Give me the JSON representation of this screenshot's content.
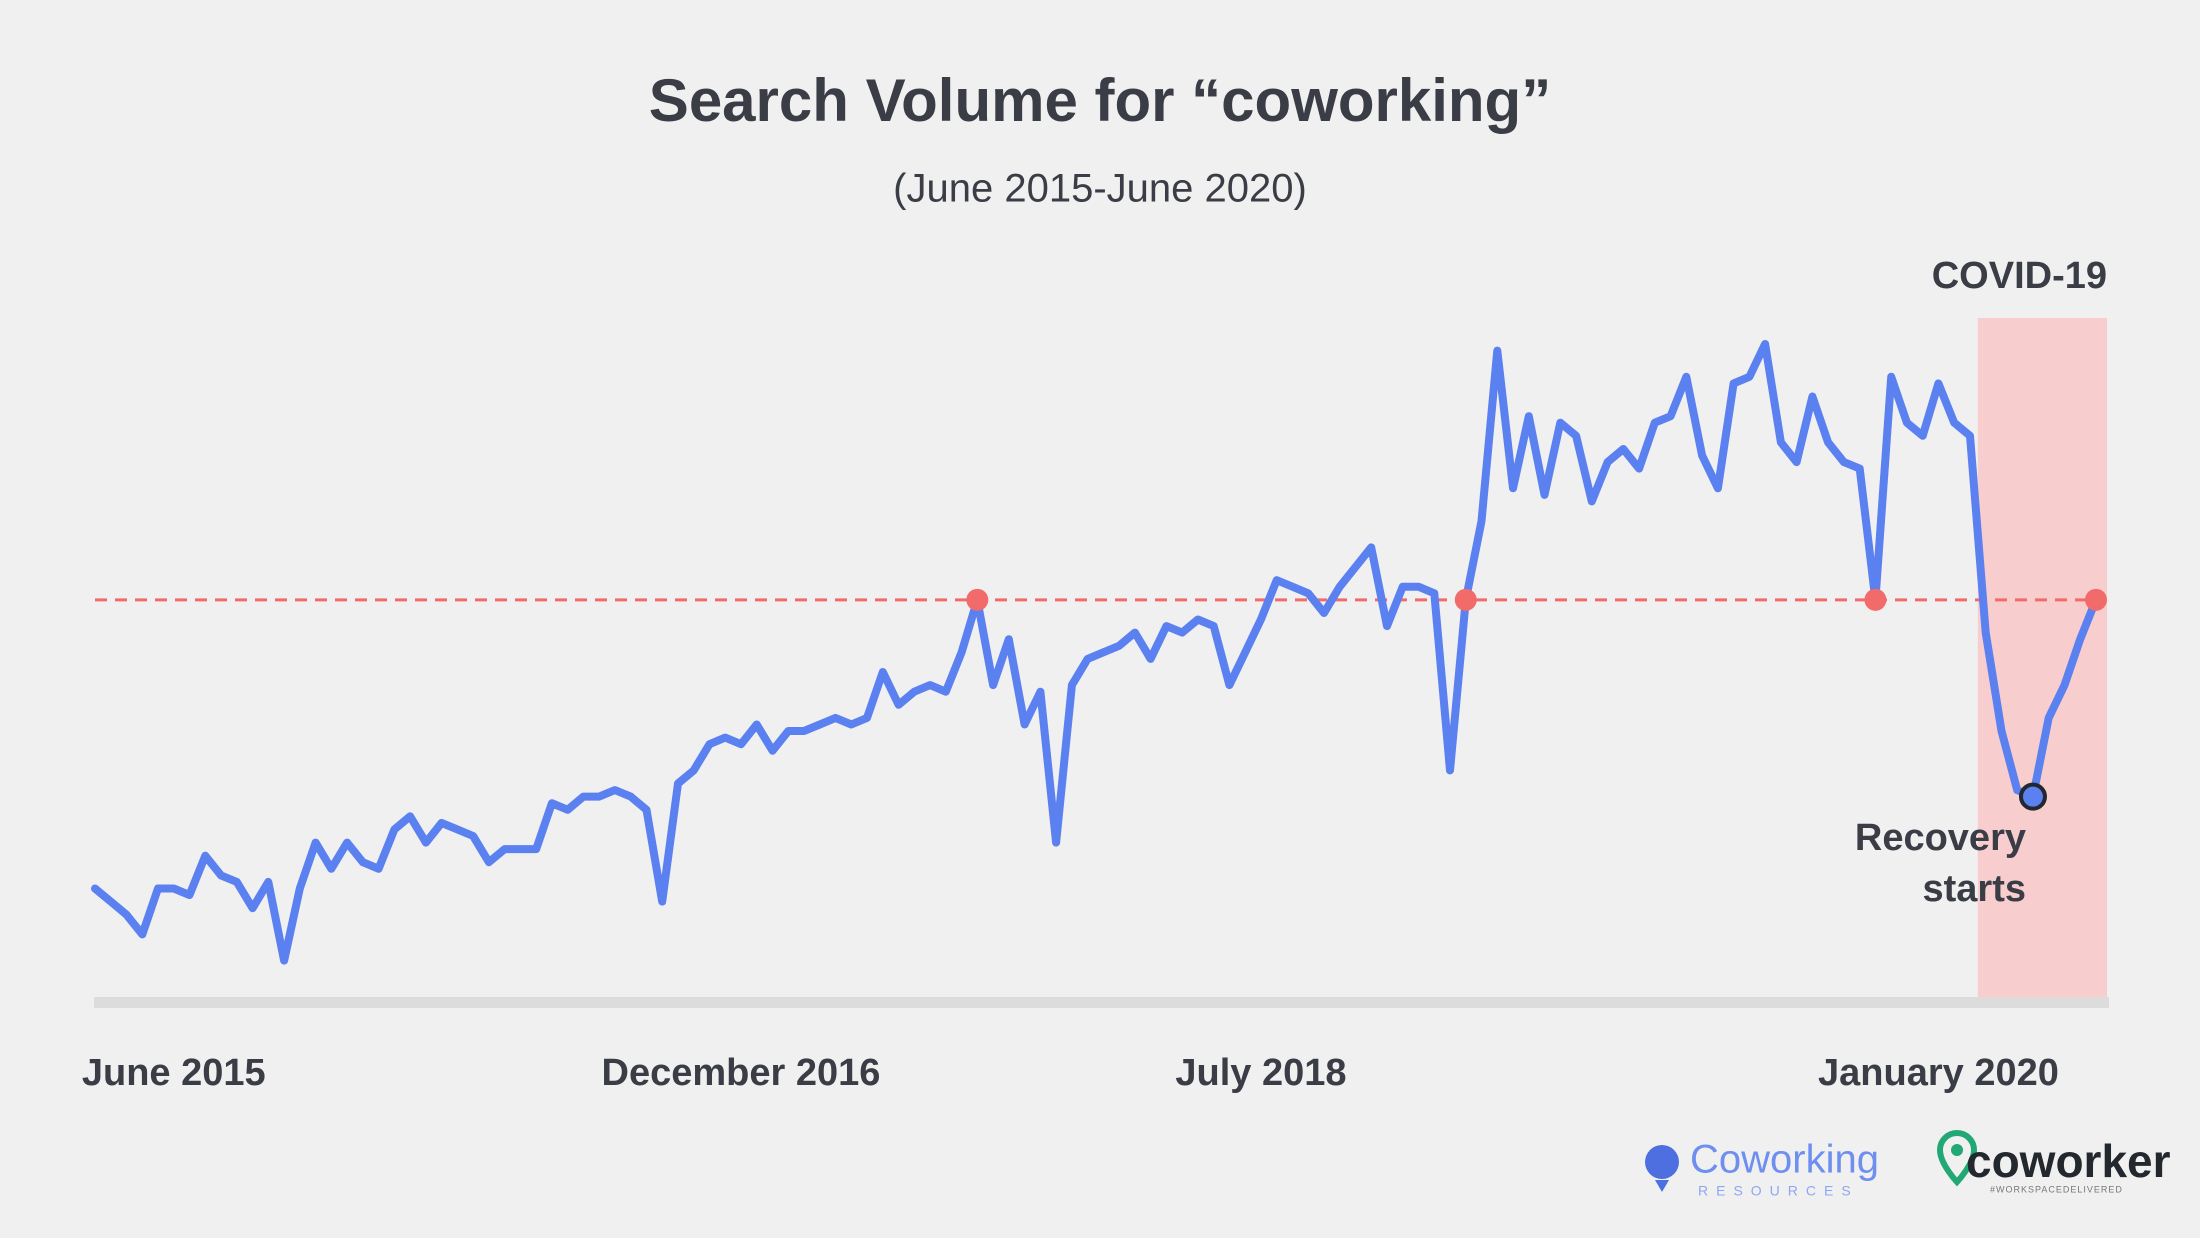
{
  "chart_data": {
    "type": "line",
    "title": "Search Volume for “coworking”",
    "subtitle": "(June 2015-June 2020)",
    "categories": [
      null,
      null,
      null,
      null,
      null,
      "June 2015",
      null,
      null,
      null,
      null,
      null,
      null,
      null,
      null,
      null,
      null,
      null,
      null,
      null,
      null,
      null,
      null,
      null,
      null,
      null,
      null,
      null,
      null,
      null,
      null,
      null,
      null,
      null,
      null,
      null,
      null,
      null,
      null,
      null,
      null,
      null,
      "December 2016",
      null,
      null,
      null,
      null,
      null,
      null,
      null,
      null,
      null,
      null,
      null,
      null,
      null,
      null,
      null,
      null,
      null,
      null,
      null,
      null,
      null,
      null,
      null,
      null,
      null,
      null,
      null,
      null,
      null,
      null,
      null,
      null,
      "July 2018",
      null,
      null,
      null,
      null,
      null,
      null,
      null,
      null,
      null,
      null,
      null,
      null,
      null,
      null,
      null,
      null,
      null,
      null,
      null,
      null,
      null,
      null,
      null,
      null,
      null,
      null,
      null,
      null,
      null,
      null,
      null,
      null,
      null,
      null,
      null,
      null,
      null,
      null,
      null,
      null,
      null,
      null,
      "January 2020",
      null,
      null,
      null,
      null,
      null,
      null,
      null,
      null,
      null,
      null
    ],
    "values": [
      17,
      15,
      13,
      10,
      17,
      17,
      16,
      22,
      19,
      18,
      14,
      18,
      6,
      17,
      24,
      20,
      24,
      21,
      20,
      26,
      28,
      24,
      27,
      26,
      25,
      21,
      23,
      23,
      23,
      30,
      29,
      31,
      31,
      32,
      31,
      29,
      15,
      33,
      35,
      39,
      40,
      39,
      42,
      38,
      41,
      41,
      42,
      43,
      42,
      43,
      50,
      45,
      47,
      48,
      47,
      53,
      61,
      48,
      55,
      42,
      47,
      24,
      48,
      52,
      53,
      54,
      56,
      52,
      57,
      56,
      58,
      57,
      48,
      53,
      58,
      64,
      63,
      62,
      59,
      63,
      66,
      69,
      57,
      63,
      63,
      62,
      35,
      61,
      73,
      99,
      78,
      89,
      77,
      88,
      86,
      76,
      82,
      84,
      81,
      88,
      89,
      95,
      83,
      78,
      94,
      95,
      100,
      85,
      82,
      92,
      85,
      82,
      81,
      61,
      95,
      88,
      86,
      94,
      88,
      86,
      56,
      41,
      32,
      31,
      43,
      48,
      55,
      61
    ],
    "color": "#5b80f0",
    "ylim": [
      0,
      100
    ],
    "reference_value": 61,
    "reference_color": "#f26b6b",
    "shade": {
      "label": "COVID-19",
      "from_index": 119,
      "to_index": 127,
      "color": "#f8cdcd"
    },
    "annotation": {
      "text": [
        "Recovery",
        "starts"
      ],
      "index": 123
    },
    "logos": [
      "Coworking",
      "RESOURCES",
      "coworker",
      "#WORKSPACEDELIVERED"
    ]
  }
}
